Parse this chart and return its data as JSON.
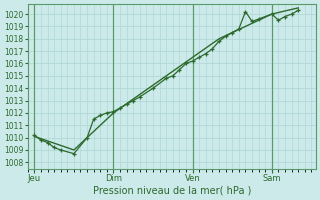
{
  "xlabel": "Pression niveau de la mer( hPa )",
  "ylim": [
    1007.5,
    1020.8
  ],
  "yticks": [
    1008,
    1009,
    1010,
    1011,
    1012,
    1013,
    1014,
    1015,
    1016,
    1017,
    1018,
    1019,
    1020
  ],
  "xtick_labels": [
    "Jeu",
    "Dim",
    "Ven",
    "Sam"
  ],
  "xtick_positions": [
    0,
    36,
    72,
    108
  ],
  "xlim": [
    -3,
    128
  ],
  "bg_color": "#cceaea",
  "line_color": "#2d6a2d",
  "grid_color": "#b0d8d8",
  "grid_major_color": "#5a9a6a",
  "series1_x": [
    0,
    3,
    6,
    9,
    12,
    18,
    24,
    27,
    30,
    33,
    36,
    39,
    42,
    45,
    48,
    54,
    60,
    63,
    66,
    69,
    72,
    75,
    78,
    81,
    84,
    87,
    90,
    93,
    96,
    99,
    102,
    108,
    111,
    114,
    117,
    120
  ],
  "series1_y": [
    1010.2,
    1009.8,
    1009.6,
    1009.2,
    1009.0,
    1008.7,
    1010.0,
    1011.5,
    1011.8,
    1012.0,
    1012.1,
    1012.4,
    1012.7,
    1013.0,
    1013.3,
    1014.0,
    1014.8,
    1015.0,
    1015.5,
    1016.0,
    1016.2,
    1016.5,
    1016.8,
    1017.2,
    1017.8,
    1018.2,
    1018.5,
    1018.8,
    1020.2,
    1019.4,
    1019.6,
    1020.0,
    1019.5,
    1019.8,
    1020.0,
    1020.3
  ],
  "series2_x": [
    0,
    18,
    36,
    60,
    84,
    108,
    120
  ],
  "series2_y": [
    1010.1,
    1009.0,
    1012.0,
    1015.0,
    1018.0,
    1020.0,
    1020.5
  ],
  "figsize": [
    3.2,
    2.0
  ],
  "dpi": 100
}
